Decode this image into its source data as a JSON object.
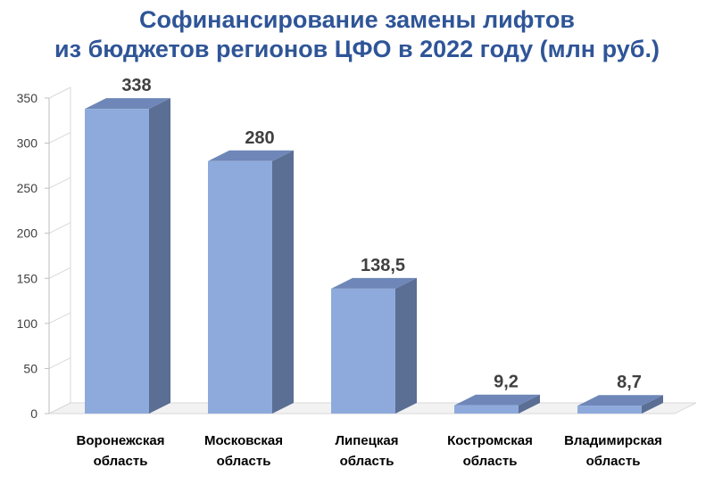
{
  "title": {
    "line1": "Софинансирование замены лифтов",
    "line2": "из бюджетов регионов ЦФО в 2022 году (млн руб.)"
  },
  "chart_data": {
    "type": "bar",
    "title": "Софинансирование замены лифтов из бюджетов регионов ЦФО в 2022 году (млн руб.)",
    "categories": [
      [
        "Воронежская",
        "область"
      ],
      [
        "Московская",
        "область"
      ],
      [
        "Липецкая",
        "область"
      ],
      [
        "Костромская",
        "область"
      ],
      [
        "Владимирская",
        "область"
      ]
    ],
    "values": [
      338,
      280,
      138.5,
      9.2,
      8.7
    ],
    "value_labels": [
      "338",
      "280",
      "138,5",
      "9,2",
      "8,7"
    ],
    "yticks": [
      "0",
      "50",
      "100",
      "150",
      "200",
      "250",
      "300",
      "350"
    ],
    "ylim": [
      0,
      350
    ],
    "grid": false,
    "style": "3d-column",
    "colors": {
      "front": "#8eaadc",
      "side": "#5b6e94",
      "top": "#6e87b8",
      "title": "#2f5597",
      "axis": "#d0d0d0"
    }
  }
}
